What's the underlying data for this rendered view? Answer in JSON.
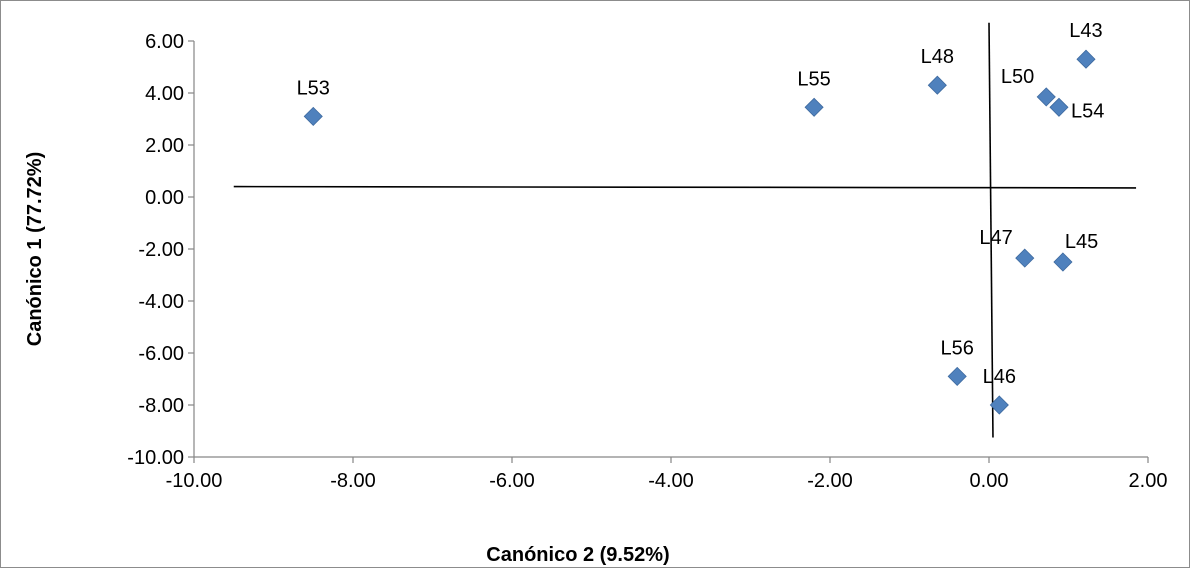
{
  "chart_data": {
    "type": "scatter",
    "title": "",
    "xlabel": "Canónico 2 (9.52%)",
    "ylabel": "Canónico 1 (77.72%)",
    "xlim": [
      -10,
      2
    ],
    "ylim": [
      -10,
      6
    ],
    "x_ticks": [
      "-10.00",
      "-8.00",
      "-6.00",
      "-4.00",
      "-2.00",
      "0.00",
      "2.00"
    ],
    "y_ticks": [
      "6.00",
      "4.00",
      "2.00",
      "0.00",
      "-2.00",
      "-4.00",
      "-6.00",
      "-8.00",
      "-10.00"
    ],
    "grid": false,
    "legend": false,
    "marker": "diamond",
    "marker_color": "#4f81bd",
    "points": [
      {
        "label": "L53",
        "x": -8.5,
        "y": 3.1,
        "label_pos": "above"
      },
      {
        "label": "L55",
        "x": -2.2,
        "y": 3.45,
        "label_pos": "above"
      },
      {
        "label": "L48",
        "x": -0.65,
        "y": 4.3,
        "label_pos": "above"
      },
      {
        "label": "L50",
        "x": 0.72,
        "y": 3.85,
        "label_pos": "upper-left"
      },
      {
        "label": "L54",
        "x": 0.88,
        "y": 3.45,
        "label_pos": "right"
      },
      {
        "label": "L43",
        "x": 1.22,
        "y": 5.3,
        "label_pos": "above"
      },
      {
        "label": "L47",
        "x": 0.45,
        "y": -2.35,
        "label_pos": "upper-left"
      },
      {
        "label": "L45",
        "x": 0.93,
        "y": -2.5,
        "label_pos": "upper-right"
      },
      {
        "label": "L56",
        "x": -0.4,
        "y": -6.9,
        "label_pos": "above"
      },
      {
        "label": "L46",
        "x": 0.13,
        "y": -8.0,
        "label_pos": "above"
      }
    ],
    "reference_lines": [
      {
        "name": "horizontal",
        "x_from": -9.5,
        "x_to": 1.85,
        "y_from": 0.4,
        "y_to": 0.35
      },
      {
        "name": "vertical",
        "x_from": 0.0,
        "x_to": 0.05,
        "y_from": 6.7,
        "y_to": -9.25
      }
    ]
  }
}
